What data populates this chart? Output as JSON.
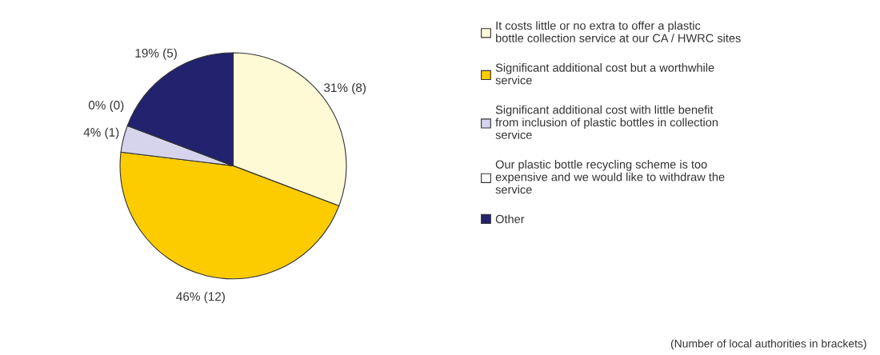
{
  "chart_data": {
    "type": "pie",
    "categories": [
      "It costs little or no extra to offer a plastic bottle collection service at our CA / HWRC sites",
      "Significant additional cost but a worthwhile service",
      "Significant additional cost with little benefit from inclusion of plastic bottles in collection service",
      "Our plastic bottle recycling scheme is too expensive and we would like to withdraw the service",
      "Other"
    ],
    "values": [
      8,
      12,
      1,
      0,
      5
    ],
    "value_labels": [
      "31% (8)",
      "46% (12)",
      "4% (1)",
      "0% (0)",
      "19% (5)"
    ],
    "colors": [
      "#fffad6",
      "#fccc00",
      "#d6d4ec",
      "#ffffff",
      "#22226e"
    ],
    "legend": "right",
    "annotations": [
      "(Number of local authorities in brackets)"
    ]
  }
}
